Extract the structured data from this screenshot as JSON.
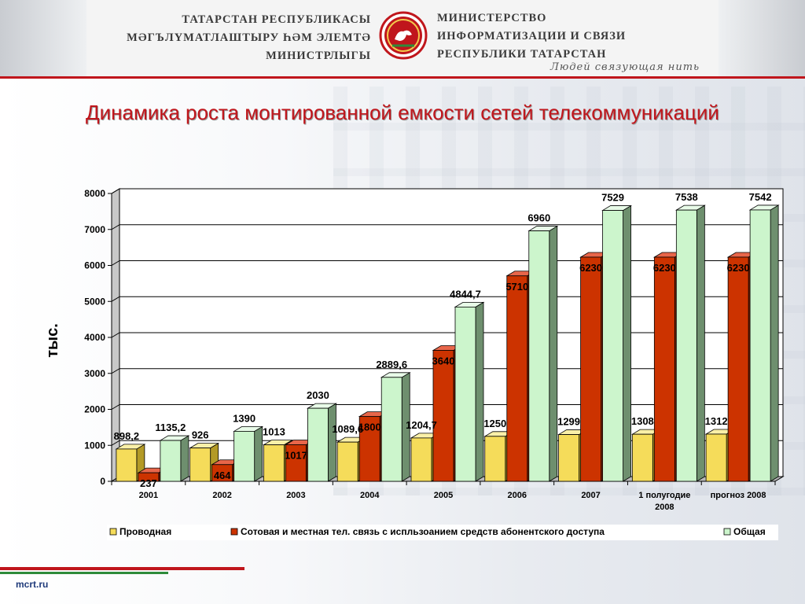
{
  "header": {
    "tatar_lines": [
      "ТАТАРСТАН РЕСПУБЛИКАСЫ",
      "МӘГЪЛҮМАТЛАШТЫРУ ҺӘМ  ЭЛЕМТӘ",
      "МИНИСТРЛЫГЫ"
    ],
    "russian_lines": [
      "МИНИСТЕРСТВО",
      "ИНФОРМАТИЗАЦИИ И СВЯЗИ",
      "РЕСПУБЛИКИ ТАТАРСТАН"
    ],
    "slogan": "Людей связующая нить",
    "emblem_icon": "tatarstan-emblem-icon",
    "accent_color": "#c0161c"
  },
  "footer": {
    "url": "mcrt.ru"
  },
  "chart_data": {
    "type": "bar",
    "title": "Динамика роста монтированной емкости сетей телекоммуникаций",
    "ylabel": "тыс.",
    "xlabel": "",
    "ylim": [
      0,
      8000
    ],
    "yticks": [
      "0",
      "1000",
      "2000",
      "3000",
      "4000",
      "5000",
      "6000",
      "7000",
      "8000"
    ],
    "grid": true,
    "legend_position": "bottom",
    "categories": [
      "2001",
      "2002",
      "2003",
      "2004",
      "2005",
      "2006",
      "2007",
      "1 полугодие 2008",
      "прогноз 2008"
    ],
    "series": [
      {
        "name": "Проводная",
        "color": "#f5dc5a",
        "side": "#b39a26",
        "top": "#faf0a8",
        "values": [
          898.2,
          926,
          1013,
          1089.6,
          1204.7,
          1250,
          1299,
          1308,
          1312
        ],
        "labels": [
          "898,2",
          "926",
          "1013",
          "1089,6",
          "1204,7",
          "1250",
          "1299",
          "1308",
          "1312"
        ]
      },
      {
        "name": "Сотовая и местная тел. связь с испльзоанием средств абонентского доступа",
        "color": "#cc3300",
        "side": "#7a1f00",
        "top": "#e8664a",
        "values": [
          237,
          464,
          1017,
          1800,
          3640,
          5710,
          6230,
          6230,
          6230
        ],
        "labels": [
          "237",
          "464",
          "1017",
          "1800",
          "3640",
          "5710",
          "6230",
          "6230",
          "6230"
        ]
      },
      {
        "name": "Общая",
        "color": "#ccf5cc",
        "side": "#6e8f6e",
        "top": "#e8fbe8",
        "values": [
          1135.2,
          1390,
          2030,
          2889.6,
          4844.7,
          6960,
          7529,
          7538,
          7542
        ],
        "labels": [
          "1135,2",
          "1390",
          "2030",
          "2889,6",
          "4844,7",
          "6960",
          "7529",
          "7538",
          "7542"
        ]
      }
    ]
  }
}
